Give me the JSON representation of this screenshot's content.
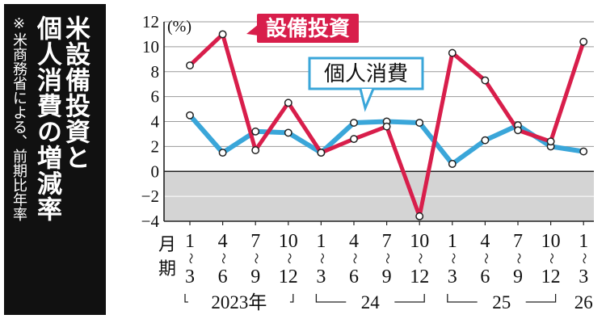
{
  "title_lines": [
    "米設備投資と",
    "個人消費の増減率"
  ],
  "note": "※米商務省による、前期比年率",
  "chart_data": {
    "type": "line",
    "y_unit": "(%)",
    "ylim": [
      -4,
      12
    ],
    "y_ticks": [
      12,
      10,
      8,
      6,
      4,
      2,
      0,
      -2,
      -4
    ],
    "x_row_label": "月期",
    "quarters": [
      "1〜3",
      "4〜6",
      "7〜9",
      "10〜12",
      "1〜3",
      "4〜6",
      "7〜9",
      "10〜12",
      "1〜3",
      "4〜6",
      "7〜9",
      "10〜12",
      "1〜3"
    ],
    "year_groups": [
      {
        "label": "2023年",
        "start": 0,
        "end": 3
      },
      {
        "label": "24",
        "start": 4,
        "end": 7
      },
      {
        "label": "25",
        "start": 8,
        "end": 11
      },
      {
        "label": "26",
        "start": 12,
        "end": 12
      }
    ],
    "series": [
      {
        "name": "設備投資",
        "color": "#d81e4b",
        "values": [
          8.5,
          11.0,
          1.7,
          5.5,
          1.5,
          2.6,
          3.6,
          -3.6,
          9.5,
          7.3,
          3.3,
          2.4,
          10.4
        ]
      },
      {
        "name": "個人消費",
        "color": "#3aa6d9",
        "values": [
          4.5,
          1.5,
          3.2,
          3.1,
          1.5,
          3.9,
          4.0,
          3.9,
          0.6,
          2.5,
          3.7,
          2.0,
          1.6
        ]
      }
    ],
    "negative_band_color": "#d4d4d4",
    "grid": true
  }
}
